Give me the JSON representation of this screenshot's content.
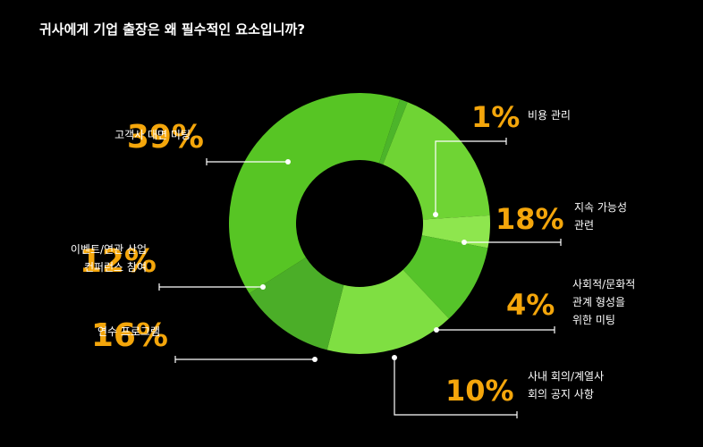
{
  "title": "귀사에게 기업 출장은 왜 필수적인 요소입니까?",
  "colors": {
    "background": "#000000",
    "accent": "#f4a60b",
    "segments": [
      "#4cb52a",
      "#6fd434",
      "#8ee64e",
      "#56c42a",
      "#7fdf42",
      "#4bae28",
      "#57c524"
    ]
  },
  "chart_data": {
    "type": "donut",
    "title": "귀사에게 기업 출장은 왜 필수적인 요소입니까?",
    "start_category": "비용 관리",
    "direction": "clockwise",
    "slices": [
      {
        "label": [
          "비용 관리"
        ],
        "value": 1,
        "value_label": "1%"
      },
      {
        "label": [
          "지속 가능성",
          "관련"
        ],
        "value": 18,
        "value_label": "18%"
      },
      {
        "label": [
          "사회적/문화적",
          "관계 형성을",
          "위한 미팅"
        ],
        "value": 4,
        "value_label": "4%"
      },
      {
        "label": [
          "사내 회의/계열사",
          "회의 공지 사항"
        ],
        "value": 10,
        "value_label": "10%"
      },
      {
        "label": [
          "연수 프로그램"
        ],
        "value": 16,
        "value_label": "16%"
      },
      {
        "label": [
          "이벤트/연관 산업",
          "컨퍼런스 참여"
        ],
        "value": 12,
        "value_label": "12%"
      },
      {
        "label": [
          "고객사 대면 미팅"
        ],
        "value": 39,
        "value_label": "39%"
      }
    ]
  }
}
